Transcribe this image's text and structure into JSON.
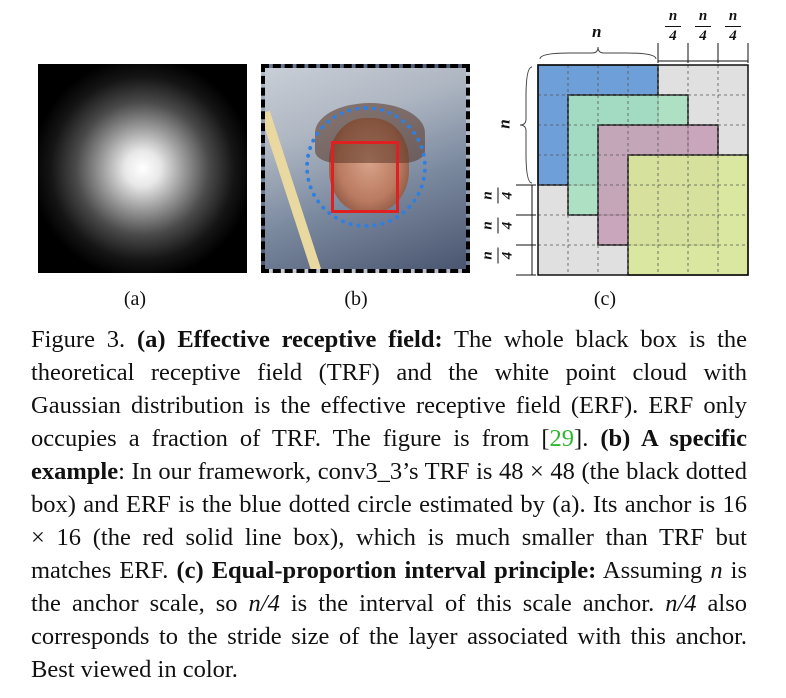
{
  "panels": {
    "a": {
      "label": "(a)"
    },
    "b": {
      "label": "(b)"
    },
    "c": {
      "label": "(c)",
      "n_label": "n",
      "quarter_num": "n",
      "quarter_den": "4"
    }
  },
  "caption": {
    "figure": "Figure 3.",
    "a_heading": "(a) Effective receptive field:",
    "a_text": " The whole black box is the theoretical receptive field (TRF) and the white point cloud with Gaussian distribution is the effective receptive field (ERF). ERF only occupies a fraction of TRF. The figure is from [",
    "a_cite": "29",
    "a_text_end": "]. ",
    "b_heading": "(b) A specific example",
    "b_text": ": In our framework, conv3_3’s TRF is 48 × 48 (the black dotted box) and ERF is the blue dotted circle estimated by (a). Its anchor is 16 × 16 (the red solid line box), which is much smaller than TRF but matches ERF. ",
    "c_heading": "(c) Equal-proportion interval principle:",
    "c_text_1": " Assuming ",
    "c_math_1": "n",
    "c_text_2": " is the anchor scale, so ",
    "c_math_2": "n/4",
    "c_text_3": " is the interval of this scale anchor. ",
    "c_math_3": "n/4",
    "c_text_4": " also corresponds to the stride size of the layer associated with this anchor. Best viewed in color."
  },
  "colors": {
    "blue_box": "#6f9fd8",
    "green_box": "#a8e0c0",
    "mauve_box": "#c8a0b8",
    "yellow_box": "#d8e89a",
    "cite": "#2eb82e",
    "red_anchor": "#e02020",
    "blue_circle": "#2f7fe0"
  }
}
